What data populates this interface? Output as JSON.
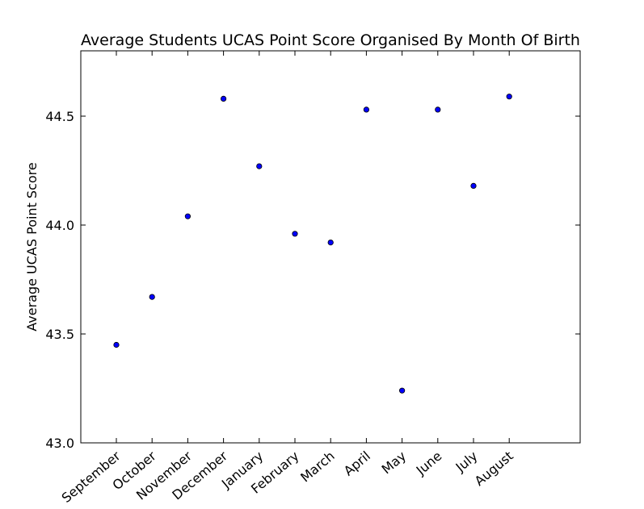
{
  "chart_data": {
    "type": "scatter",
    "title": "Average Students UCAS Point Score Organised By Month Of Birth",
    "xlabel": "",
    "ylabel": "Average UCAS Point Score",
    "categories": [
      "September",
      "October",
      "November",
      "December",
      "January",
      "February",
      "March",
      "April",
      "May",
      "June",
      "July",
      "August"
    ],
    "values": [
      43.45,
      43.67,
      44.04,
      44.58,
      44.27,
      43.96,
      43.92,
      44.53,
      43.24,
      44.53,
      44.18,
      44.59
    ],
    "ylim": [
      43.0,
      44.8
    ],
    "yticks": [
      "43.0",
      "43.5",
      "44.0",
      "44.5"
    ],
    "grid": false,
    "marker_color": "#0000ff",
    "marker_edge_color": "#000000"
  }
}
